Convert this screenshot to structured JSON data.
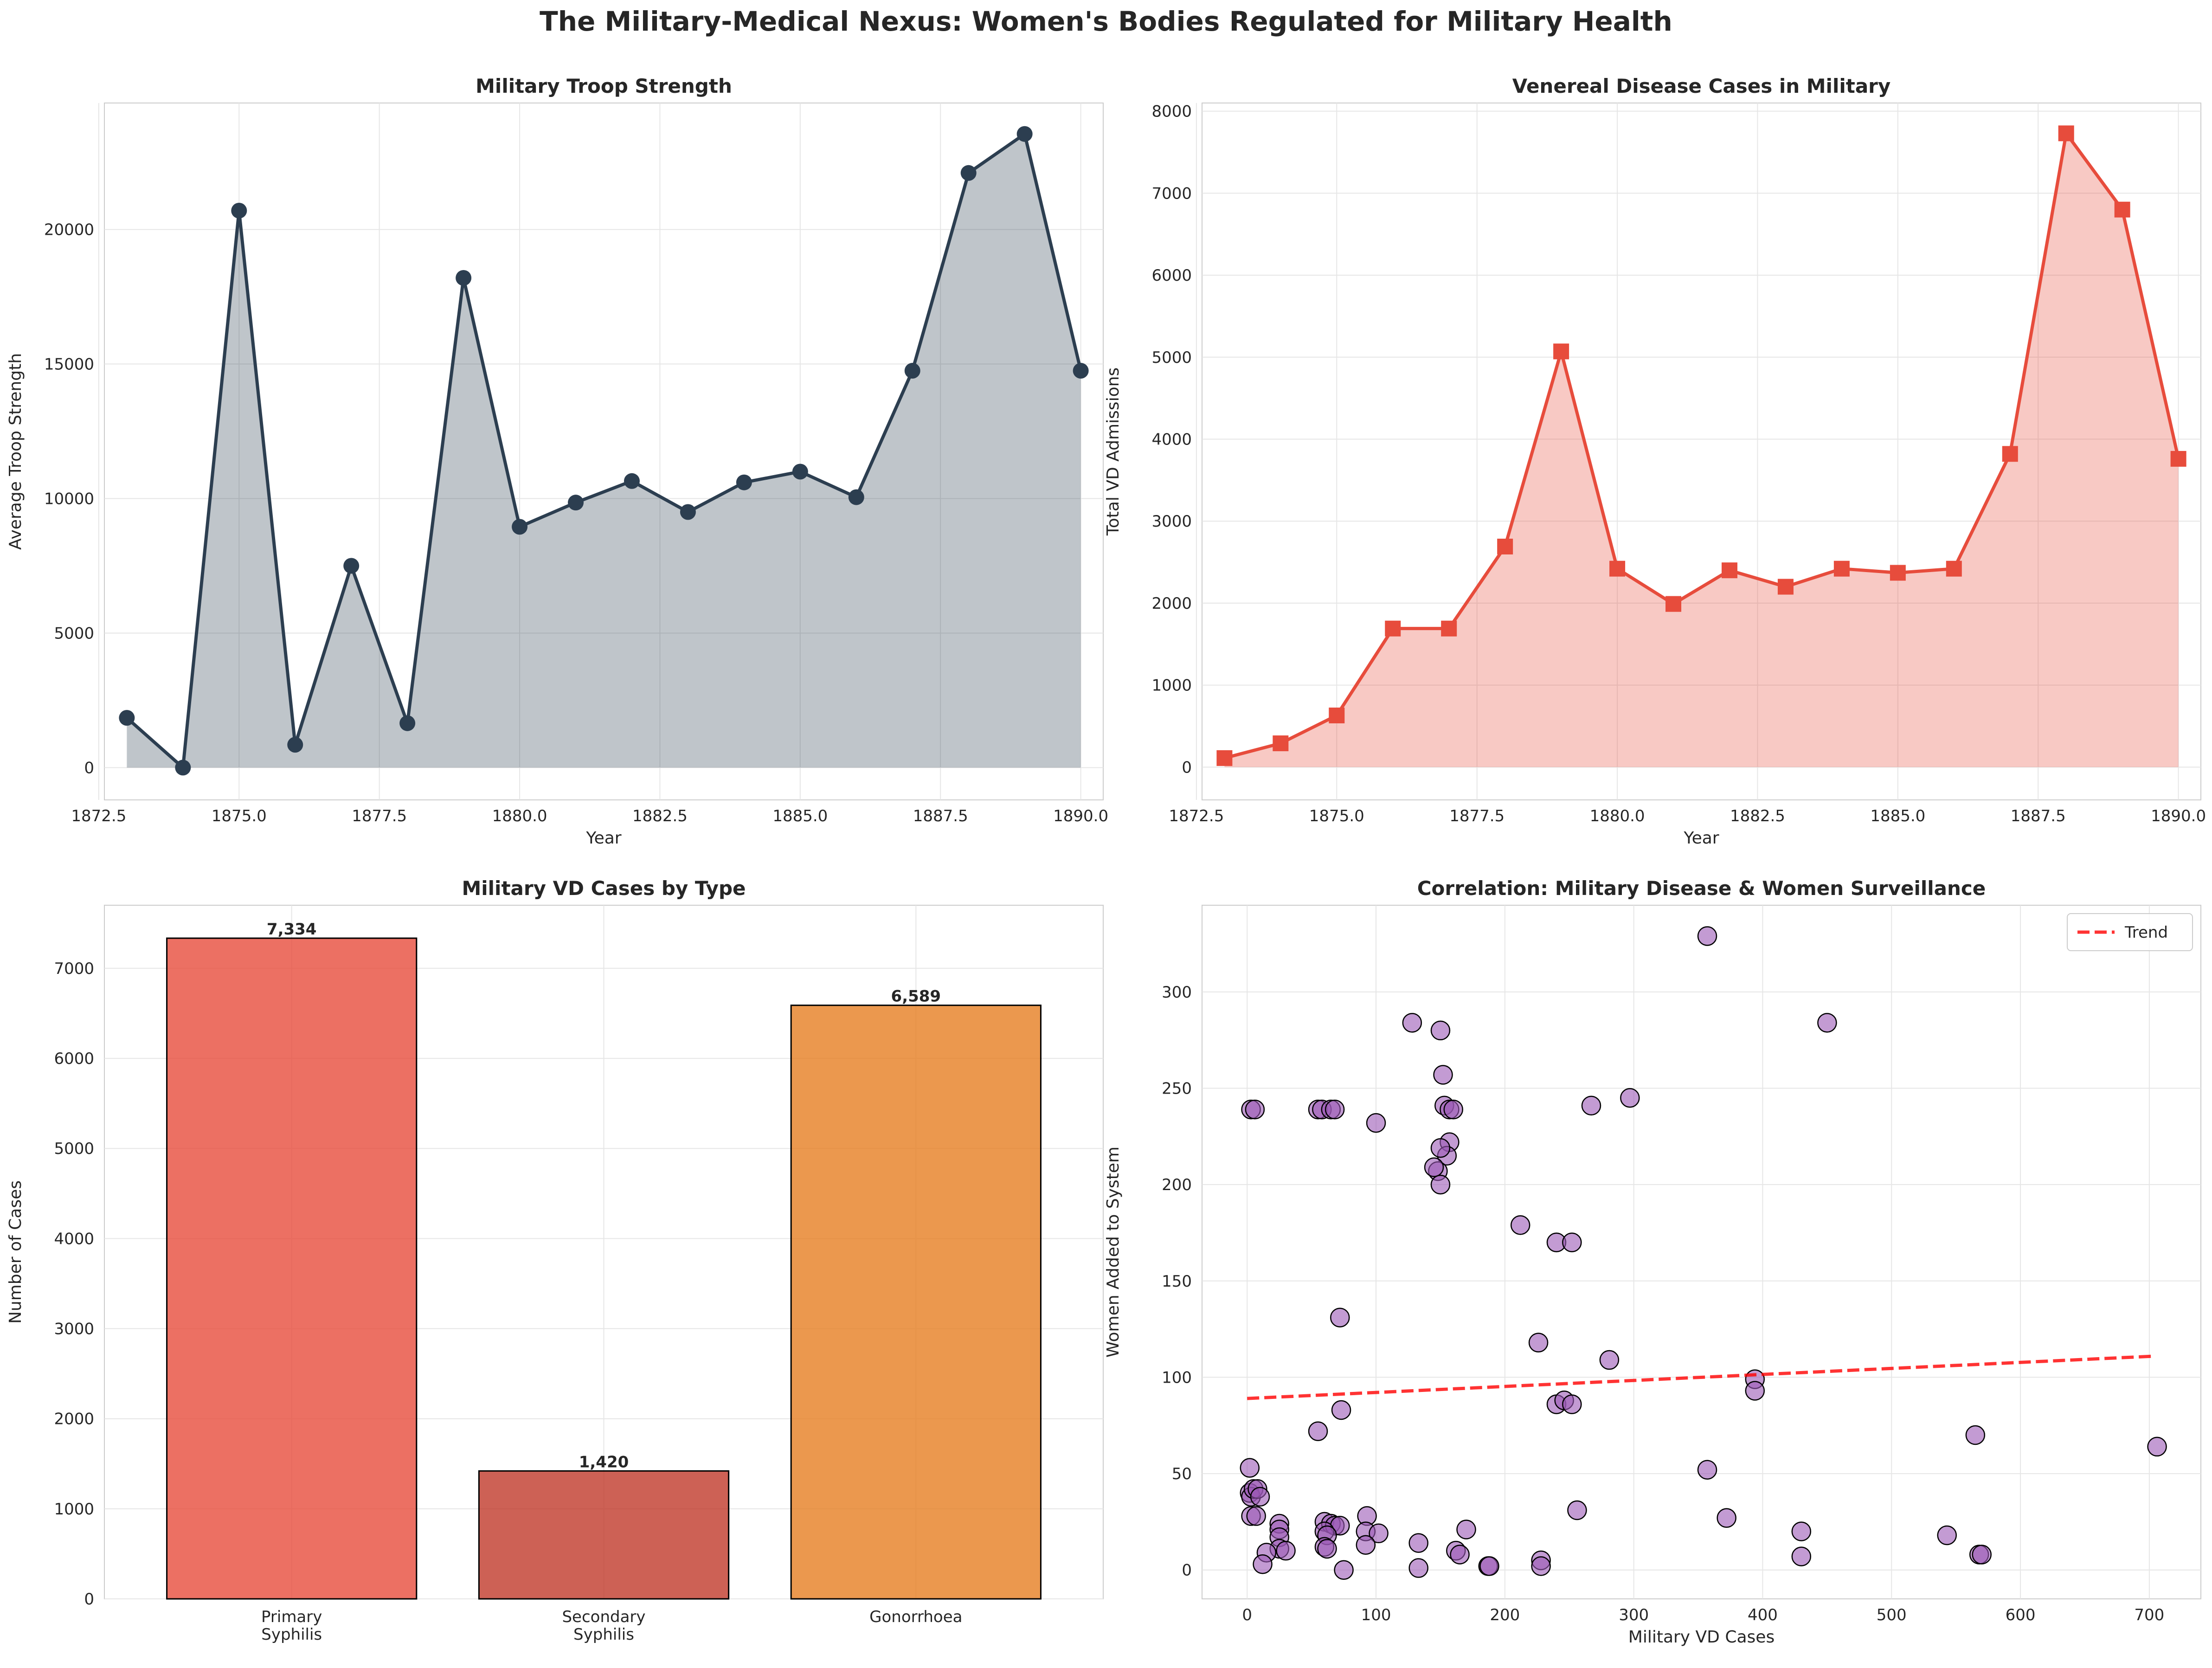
{
  "figure_title": "The Military-Medical Nexus: Women's Bodies Regulated for Military Health",
  "colors": {
    "troop": "#2c3e50",
    "vd": "#e74c3c",
    "primary": "#e74c3c",
    "secondary": "#c0392b",
    "gonorrhoea": "#e67e22",
    "scatter": "#9b59b6",
    "trend": "#ff0000"
  },
  "chart_data": [
    {
      "type": "area",
      "title": "Military Troop Strength",
      "xlabel": "Year",
      "ylabel": "Average Troop Strength",
      "x": [
        1873,
        1874,
        1875,
        1876,
        1877,
        1878,
        1879,
        1880,
        1881,
        1882,
        1883,
        1884,
        1885,
        1886,
        1887,
        1888,
        1889,
        1890
      ],
      "y": [
        1850,
        0,
        20700,
        850,
        7500,
        1650,
        18200,
        8950,
        9850,
        10650,
        9500,
        10600,
        11000,
        10050,
        14750,
        22100,
        23550,
        14750
      ],
      "xlim": [
        1872.6,
        1890.4
      ],
      "ylim": [
        -1200,
        24700
      ],
      "xticks": [
        "1872.5",
        "1875.0",
        "1877.5",
        "1880.0",
        "1882.5",
        "1885.0",
        "1887.5",
        "1890.0"
      ],
      "yticks": [
        "0",
        "5000",
        "10000",
        "15000",
        "20000"
      ],
      "marker": "circle",
      "grid": true
    },
    {
      "type": "area",
      "title": "Venereal Disease Cases in Military",
      "xlabel": "Year",
      "ylabel": "Total VD Admissions",
      "x": [
        1873,
        1874,
        1875,
        1876,
        1877,
        1878,
        1879,
        1880,
        1881,
        1882,
        1883,
        1884,
        1885,
        1886,
        1887,
        1888,
        1889,
        1890
      ],
      "y": [
        110,
        290,
        630,
        1690,
        1690,
        2690,
        5070,
        2420,
        1990,
        2400,
        2200,
        2420,
        2370,
        2420,
        3820,
        7730,
        6800,
        3760
      ],
      "xlim": [
        1872.6,
        1890.4
      ],
      "ylim": [
        -400,
        8100
      ],
      "xticks": [
        "1872.5",
        "1875.0",
        "1877.5",
        "1880.0",
        "1882.5",
        "1885.0",
        "1887.5",
        "1890.0"
      ],
      "yticks": [
        "0",
        "1000",
        "2000",
        "3000",
        "4000",
        "5000",
        "6000",
        "7000",
        "8000"
      ],
      "marker": "square",
      "grid": true
    },
    {
      "type": "bar",
      "title": "Military VD Cases by Type",
      "ylabel": "Number of Cases",
      "categories": [
        [
          "Primary",
          "Syphilis"
        ],
        [
          "Secondary",
          "Syphilis"
        ],
        [
          "Gonorrhoea"
        ]
      ],
      "values": [
        7334,
        1420,
        6589
      ],
      "value_labels": [
        "7,334",
        "1,420",
        "6,589"
      ],
      "ylim": [
        0,
        7700
      ],
      "yticks": [
        "0",
        "1000",
        "2000",
        "3000",
        "4000",
        "5000",
        "6000",
        "7000"
      ],
      "grid": true
    },
    {
      "type": "scatter",
      "title": "Correlation: Military Disease & Women Surveillance",
      "xlabel": "Military VD Cases",
      "ylabel": "Women Added to System",
      "legend": [
        "Trend"
      ],
      "legend_position": "top-right",
      "xlim": [
        -35,
        740
      ],
      "ylim": [
        -15,
        345
      ],
      "xticks": [
        "0",
        "100",
        "200",
        "300",
        "400",
        "500",
        "600",
        "700"
      ],
      "yticks": [
        "0",
        "50",
        "100",
        "150",
        "200",
        "250",
        "300"
      ],
      "trend": {
        "x": [
          0,
          705
        ],
        "y": [
          89,
          111
        ]
      },
      "points": [
        [
          3,
          239
        ],
        [
          6,
          239
        ],
        [
          55,
          239
        ],
        [
          58,
          239
        ],
        [
          65,
          239
        ],
        [
          68,
          239
        ],
        [
          150,
          280
        ],
        [
          152,
          257
        ],
        [
          153,
          241
        ],
        [
          157,
          222
        ],
        [
          155,
          215
        ],
        [
          150,
          219
        ],
        [
          148,
          207
        ],
        [
          145,
          209
        ],
        [
          150,
          200
        ],
        [
          157,
          239
        ],
        [
          160,
          239
        ],
        [
          128,
          284
        ],
        [
          100,
          232
        ],
        [
          267,
          241
        ],
        [
          297,
          245
        ],
        [
          212,
          179
        ],
        [
          240,
          170
        ],
        [
          252,
          170
        ],
        [
          357,
          329
        ],
        [
          450,
          284
        ],
        [
          72,
          131
        ],
        [
          226,
          118
        ],
        [
          281,
          109
        ],
        [
          240,
          86
        ],
        [
          246,
          88
        ],
        [
          252,
          86
        ],
        [
          394,
          99
        ],
        [
          394,
          93
        ],
        [
          73,
          83
        ],
        [
          55,
          72
        ],
        [
          565,
          70
        ],
        [
          706,
          64
        ],
        [
          357,
          52
        ],
        [
          256,
          31
        ],
        [
          2,
          53
        ],
        [
          2,
          40
        ],
        [
          3,
          38
        ],
        [
          5,
          42
        ],
        [
          8,
          42
        ],
        [
          10,
          38
        ],
        [
          3,
          28
        ],
        [
          7,
          28
        ],
        [
          25,
          24
        ],
        [
          25,
          21
        ],
        [
          25,
          17
        ],
        [
          25,
          11
        ],
        [
          30,
          10
        ],
        [
          15,
          9
        ],
        [
          12,
          3
        ],
        [
          60,
          25
        ],
        [
          65,
          24
        ],
        [
          68,
          23
        ],
        [
          72,
          23
        ],
        [
          60,
          20
        ],
        [
          62,
          18
        ],
        [
          60,
          12
        ],
        [
          62,
          11
        ],
        [
          93,
          28
        ],
        [
          92,
          20
        ],
        [
          102,
          19
        ],
        [
          92,
          13
        ],
        [
          75,
          0
        ],
        [
          133,
          14
        ],
        [
          133,
          1
        ],
        [
          162,
          10
        ],
        [
          165,
          8
        ],
        [
          170,
          21
        ],
        [
          187,
          2
        ],
        [
          188,
          2
        ],
        [
          228,
          5
        ],
        [
          228,
          2
        ],
        [
          372,
          27
        ],
        [
          430,
          20
        ],
        [
          430,
          7
        ],
        [
          543,
          18
        ],
        [
          568,
          8
        ],
        [
          570,
          8
        ]
      ],
      "grid": true
    }
  ]
}
